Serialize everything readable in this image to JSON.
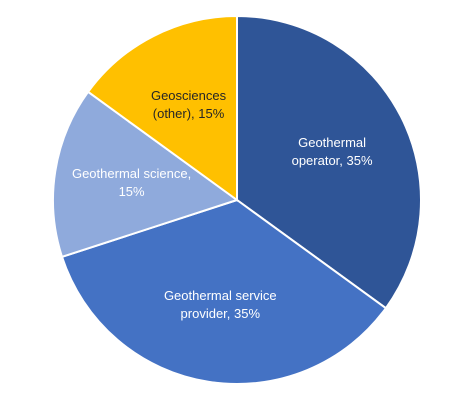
{
  "chart_data": {
    "type": "pie",
    "categories": [
      "Geothermal operator",
      "Geothermal service provider",
      "Geothermal science",
      "Geosciences (other)"
    ],
    "values": [
      35,
      35,
      15,
      15
    ],
    "value_labels": [
      "Geothermal operator, 35%",
      "Geothermal service provider, 35%",
      "Geothermal science, 15%",
      "Geosciences (other), 15%"
    ],
    "colors": [
      "#2f5597",
      "#4472c4",
      "#8faadc",
      "#ffc000"
    ]
  }
}
